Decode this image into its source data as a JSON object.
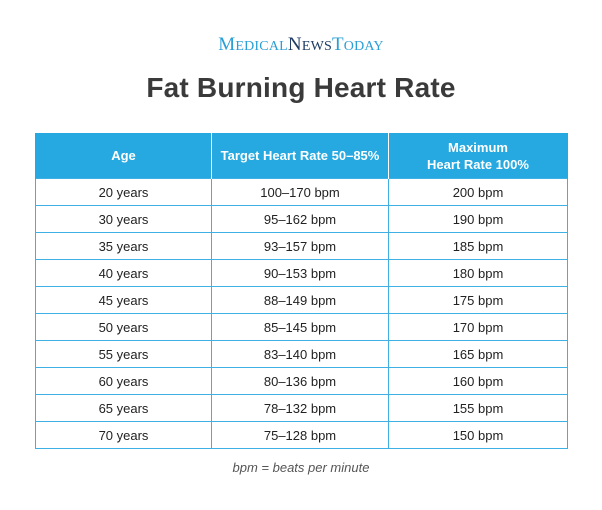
{
  "brand": {
    "word1_initial": "M",
    "word1_rest": "EDICAL",
    "word2_initial": "N",
    "word2_rest": "EWS",
    "word3_initial": "T",
    "word3_rest": "ODAY"
  },
  "title": "Fat Burning Heart Rate",
  "table": {
    "headers": {
      "age": "Age",
      "target": "Target Heart Rate 50–85%",
      "max_line1": "Maximum",
      "max_line2": "Heart Rate 100%"
    },
    "rows": [
      {
        "age": "20 years",
        "target": "100–170 bpm",
        "max": "200 bpm"
      },
      {
        "age": "30 years",
        "target": "95–162 bpm",
        "max": "190 bpm"
      },
      {
        "age": "35 years",
        "target": "93–157 bpm",
        "max": "185 bpm"
      },
      {
        "age": "40 years",
        "target": "90–153 bpm",
        "max": "180 bpm"
      },
      {
        "age": "45 years",
        "target": "88–149 bpm",
        "max": "175 bpm"
      },
      {
        "age": "50 years",
        "target": "85–145 bpm",
        "max": "170 bpm"
      },
      {
        "age": "55 years",
        "target": "83–140 bpm",
        "max": "165 bpm"
      },
      {
        "age": "60 years",
        "target": "80–136 bpm",
        "max": "160 bpm"
      },
      {
        "age": "65 years",
        "target": "78–132 bpm",
        "max": "155 bpm"
      },
      {
        "age": "70 years",
        "target": "75–128 bpm",
        "max": "150 bpm"
      }
    ]
  },
  "footnote": "bpm = beats per minute",
  "colors": {
    "header_bg": "#26a8e0",
    "border": "#3fb0e3",
    "title": "#3a3a3a",
    "brand_blue": "#2a9fd6",
    "brand_navy": "#1d3b63"
  }
}
